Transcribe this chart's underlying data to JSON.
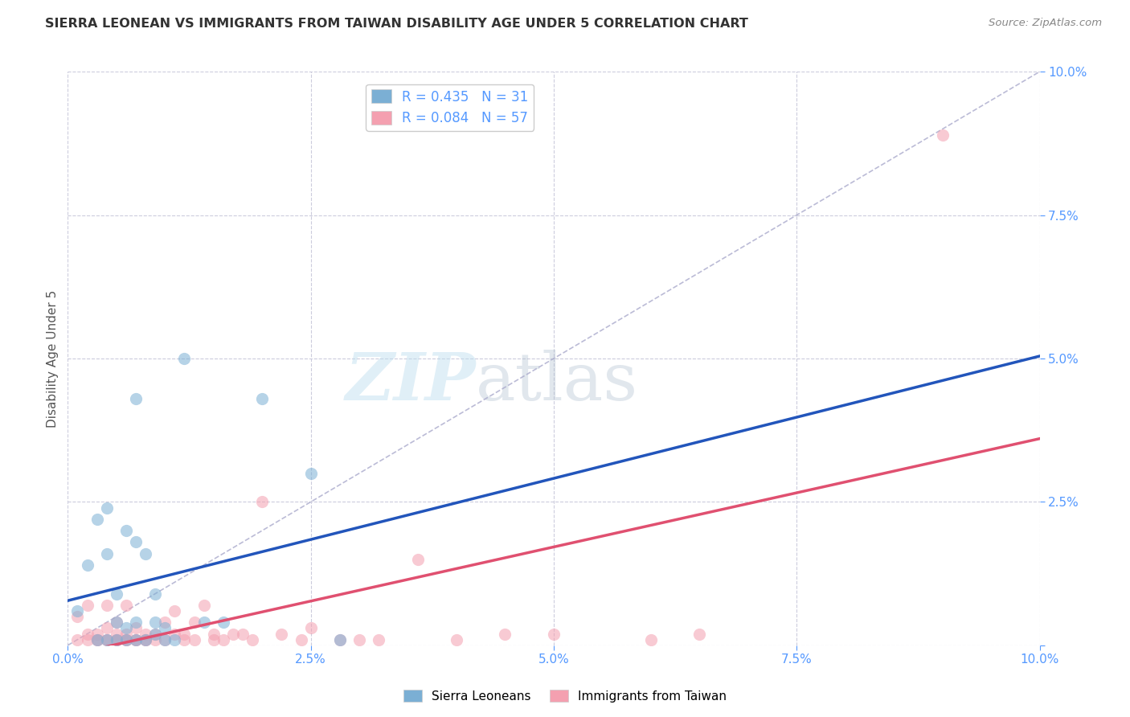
{
  "title": "SIERRA LEONEAN VS IMMIGRANTS FROM TAIWAN DISABILITY AGE UNDER 5 CORRELATION CHART",
  "source": "Source: ZipAtlas.com",
  "ylabel": "Disability Age Under 5",
  "xlim": [
    0.0,
    0.1
  ],
  "ylim": [
    0.0,
    0.1
  ],
  "xtick_vals": [
    0.0,
    0.025,
    0.05,
    0.075,
    0.1
  ],
  "xtick_labels": [
    "0.0%",
    "2.5%",
    "5.0%",
    "7.5%",
    "10.0%"
  ],
  "ytick_vals": [
    0.0,
    0.025,
    0.05,
    0.075,
    0.1
  ],
  "ytick_labels": [
    "",
    "2.5%",
    "5.0%",
    "7.5%",
    "10.0%"
  ],
  "sierra_r": 0.435,
  "sierra_n": 31,
  "taiwan_r": 0.084,
  "taiwan_n": 57,
  "sierra_color": "#7BAFD4",
  "taiwan_color": "#F4A0B0",
  "sierra_line_color": "#2255BB",
  "taiwan_line_color": "#E05070",
  "diagonal_color": "#AAAACC",
  "watermark_zip": "ZIP",
  "watermark_atlas": "atlas",
  "background_color": "#FFFFFF",
  "grid_color": "#CCCCDD",
  "title_color": "#333333",
  "source_color": "#888888",
  "tick_color": "#5599FF",
  "ylabel_color": "#555555",
  "sierra_x": [
    0.001,
    0.002,
    0.003,
    0.003,
    0.004,
    0.004,
    0.004,
    0.005,
    0.005,
    0.005,
    0.006,
    0.006,
    0.006,
    0.007,
    0.007,
    0.007,
    0.007,
    0.008,
    0.008,
    0.009,
    0.009,
    0.009,
    0.01,
    0.01,
    0.011,
    0.012,
    0.014,
    0.016,
    0.02,
    0.025,
    0.028
  ],
  "sierra_y": [
    0.006,
    0.014,
    0.001,
    0.022,
    0.001,
    0.016,
    0.024,
    0.001,
    0.004,
    0.009,
    0.001,
    0.003,
    0.02,
    0.001,
    0.004,
    0.018,
    0.043,
    0.001,
    0.016,
    0.002,
    0.004,
    0.009,
    0.001,
    0.003,
    0.001,
    0.05,
    0.004,
    0.004,
    0.043,
    0.03,
    0.001
  ],
  "taiwan_x": [
    0.001,
    0.001,
    0.002,
    0.002,
    0.002,
    0.003,
    0.003,
    0.003,
    0.004,
    0.004,
    0.004,
    0.004,
    0.005,
    0.005,
    0.005,
    0.005,
    0.006,
    0.006,
    0.006,
    0.006,
    0.007,
    0.007,
    0.007,
    0.008,
    0.008,
    0.008,
    0.009,
    0.009,
    0.01,
    0.01,
    0.011,
    0.011,
    0.012,
    0.012,
    0.013,
    0.013,
    0.014,
    0.015,
    0.015,
    0.016,
    0.017,
    0.018,
    0.019,
    0.02,
    0.022,
    0.024,
    0.025,
    0.028,
    0.03,
    0.032,
    0.036,
    0.04,
    0.045,
    0.05,
    0.06,
    0.065,
    0.09
  ],
  "taiwan_y": [
    0.001,
    0.005,
    0.001,
    0.002,
    0.007,
    0.001,
    0.001,
    0.002,
    0.001,
    0.003,
    0.007,
    0.001,
    0.001,
    0.002,
    0.004,
    0.001,
    0.001,
    0.002,
    0.007,
    0.001,
    0.001,
    0.003,
    0.001,
    0.001,
    0.002,
    0.001,
    0.002,
    0.001,
    0.001,
    0.004,
    0.002,
    0.006,
    0.001,
    0.002,
    0.001,
    0.004,
    0.007,
    0.001,
    0.002,
    0.001,
    0.002,
    0.002,
    0.001,
    0.025,
    0.002,
    0.001,
    0.003,
    0.001,
    0.001,
    0.001,
    0.015,
    0.001,
    0.002,
    0.002,
    0.001,
    0.002,
    0.089
  ],
  "sierra_line_x0": 0.0,
  "sierra_line_y0": -0.0015,
  "sierra_line_x1": 0.1,
  "sierra_line_y1": 0.1,
  "taiwan_line_x0": 0.0,
  "taiwan_line_y0": 0.012,
  "taiwan_line_x1": 0.1,
  "taiwan_line_y1": 0.022
}
